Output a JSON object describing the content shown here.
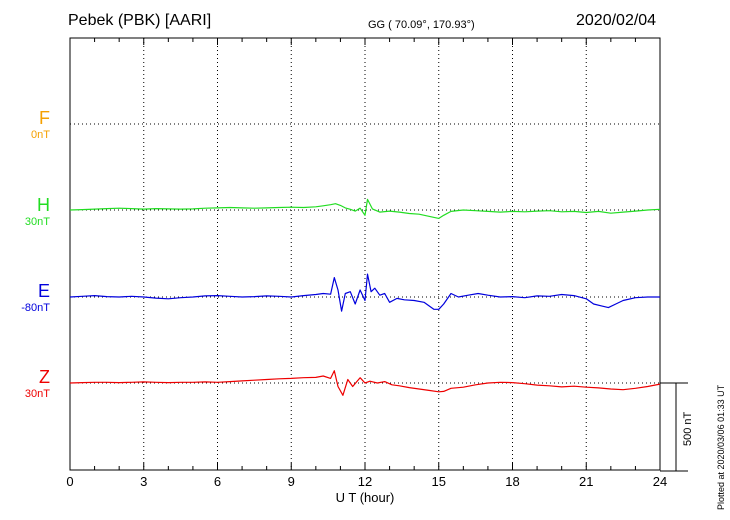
{
  "header": {
    "station": "Pebek (PBK)  [AARI]",
    "coords": "GG ( 70.09°, 170.93°)",
    "date": "2020/02/04"
  },
  "footer": {
    "plotted": "Plotted at 2020/03/06 01:33 UT"
  },
  "chart_data": {
    "type": "line",
    "xlabel": "U T (hour)",
    "xlim": [
      0,
      24
    ],
    "xticks": [
      "0",
      "3",
      "6",
      "9",
      "12",
      "15",
      "18",
      "21",
      "24"
    ],
    "scale_bar_label": "500 nT",
    "grid": true,
    "series": [
      {
        "name": "F",
        "baseline": "0nT",
        "color": "#f5a000",
        "no_data": true
      },
      {
        "name": "H",
        "baseline": "30nT",
        "color": "#22dd22",
        "x": [
          0,
          0.5,
          1,
          1.5,
          2,
          2.5,
          3,
          3.5,
          4,
          4.5,
          5,
          5.5,
          6,
          6.5,
          7,
          7.5,
          8,
          8.5,
          9,
          9.5,
          10,
          10.3,
          10.6,
          10.8,
          11,
          11.2,
          11.4,
          11.6,
          11.8,
          12,
          12.1,
          12.3,
          12.6,
          13,
          13.4,
          13.8,
          14.2,
          14.6,
          15,
          15.2,
          15.5,
          16,
          16.5,
          17,
          17.5,
          18,
          18.5,
          19,
          19.5,
          20,
          20.5,
          21,
          21.5,
          22,
          22.5,
          23,
          23.5,
          24
        ],
        "y": [
          0,
          2,
          5,
          8,
          10,
          8,
          5,
          8,
          6,
          5,
          6,
          10,
          12,
          14,
          12,
          10,
          12,
          14,
          16,
          14,
          18,
          24,
          30,
          36,
          26,
          12,
          4,
          -6,
          10,
          -30,
          60,
          6,
          -12,
          -6,
          -12,
          -20,
          -24,
          -36,
          -48,
          -30,
          -8,
          0,
          -4,
          -8,
          -12,
          -8,
          -10,
          -6,
          -4,
          -10,
          -8,
          -14,
          -8,
          -18,
          -12,
          -6,
          0,
          4
        ]
      },
      {
        "name": "E",
        "baseline": "-80nT",
        "color": "#0000dd",
        "x": [
          0,
          0.5,
          1,
          1.5,
          2,
          2.5,
          3,
          3.5,
          4,
          4.5,
          5,
          5.5,
          6,
          6.5,
          7,
          7.5,
          8,
          8.5,
          9,
          9.5,
          10,
          10.3,
          10.6,
          10.75,
          10.9,
          11.05,
          11.2,
          11.4,
          11.6,
          11.8,
          12,
          12.1,
          12.25,
          12.4,
          12.6,
          12.8,
          13,
          13.3,
          13.6,
          14,
          14.4,
          14.8,
          15,
          15.2,
          15.5,
          15.8,
          16.2,
          16.6,
          17,
          17.5,
          18,
          18.5,
          19,
          19.5,
          20,
          20.5,
          21,
          21.3,
          21.6,
          21.9,
          22.2,
          22.5,
          23,
          23.5,
          24
        ],
        "y": [
          0,
          4,
          8,
          2,
          0,
          4,
          0,
          -6,
          -10,
          -4,
          0,
          6,
          8,
          4,
          0,
          2,
          6,
          4,
          0,
          8,
          14,
          20,
          16,
          110,
          40,
          -80,
          20,
          30,
          -40,
          40,
          -20,
          130,
          30,
          50,
          10,
          20,
          -30,
          -8,
          -16,
          -20,
          -30,
          -70,
          -70,
          -40,
          20,
          0,
          10,
          20,
          10,
          0,
          2,
          -4,
          6,
          4,
          14,
          8,
          -10,
          -40,
          -50,
          -60,
          -40,
          -20,
          -4,
          0,
          0
        ]
      },
      {
        "name": "Z",
        "baseline": "30nT",
        "color": "#ee0000",
        "x": [
          0,
          0.5,
          1,
          1.5,
          2,
          2.5,
          3,
          3.5,
          4,
          4.5,
          5,
          5.5,
          6,
          6.5,
          7,
          7.5,
          8,
          8.5,
          9,
          9.5,
          10,
          10.3,
          10.6,
          10.75,
          10.9,
          11.1,
          11.3,
          11.5,
          11.8,
          12,
          12.2,
          12.5,
          12.8,
          13.1,
          13.4,
          13.8,
          14.2,
          14.6,
          15,
          15.2,
          15.5,
          16,
          16.5,
          17,
          17.5,
          18,
          18.5,
          19,
          19.5,
          20,
          20.5,
          21,
          21.5,
          22,
          22.5,
          23,
          23.5,
          24
        ],
        "y": [
          0,
          2,
          4,
          4,
          2,
          4,
          6,
          4,
          2,
          4,
          4,
          6,
          4,
          8,
          12,
          16,
          20,
          24,
          26,
          30,
          32,
          40,
          26,
          70,
          -20,
          -70,
          20,
          -20,
          30,
          0,
          10,
          0,
          8,
          -10,
          -16,
          -26,
          -34,
          -42,
          -50,
          -48,
          -30,
          -24,
          -10,
          0,
          4,
          2,
          -4,
          -12,
          -16,
          -22,
          -18,
          -24,
          -28,
          -34,
          -38,
          -30,
          -20,
          -6
        ]
      }
    ]
  }
}
